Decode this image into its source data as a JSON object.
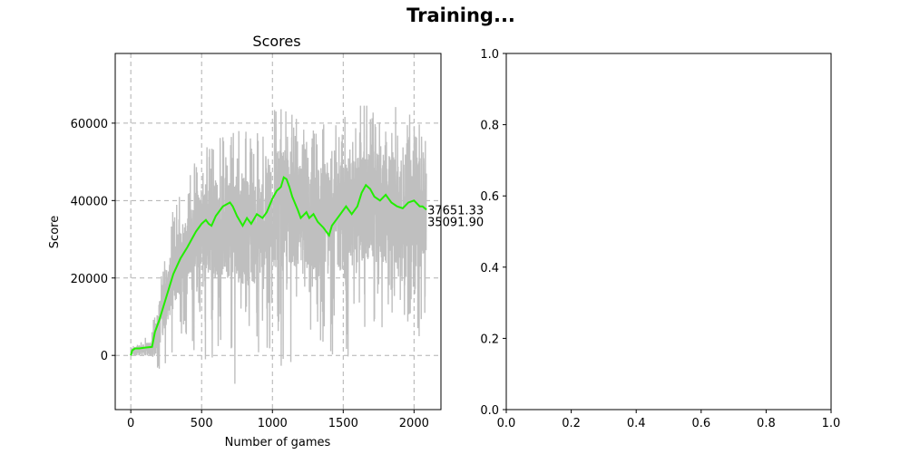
{
  "figure": {
    "suptitle": "Training..."
  },
  "chart_data": [
    {
      "type": "line",
      "title": "Scores",
      "xlabel": "Number of games",
      "ylabel": "Score",
      "xlim": [
        -110,
        2190
      ],
      "ylim": [
        -14000,
        78000
      ],
      "xticks": [
        0,
        500,
        1000,
        1500,
        2000
      ],
      "yticks": [
        0,
        20000,
        40000,
        60000
      ],
      "xtick_labels": [
        "0",
        "500",
        "1000",
        "1500",
        "2000"
      ],
      "ytick_labels": [
        "0",
        "20000",
        "40000",
        "60000"
      ],
      "grid": true,
      "grid_style": "dashed",
      "series": [
        {
          "role": "raw scores",
          "color": "#bfbfbf",
          "n_games": 2088,
          "envelope_x": [
            0,
            50,
            100,
            150,
            200,
            250,
            300,
            350,
            400,
            450,
            500,
            550,
            600,
            650,
            700,
            750,
            800,
            850,
            900,
            950,
            1000,
            1050,
            1100,
            1150,
            1200,
            1250,
            1300,
            1350,
            1400,
            1450,
            1500,
            1550,
            1600,
            1650,
            1700,
            1750,
            1800,
            1850,
            1900,
            1950,
            2000,
            2050,
            2088
          ],
          "envelope_high": [
            2500,
            3000,
            4500,
            7000,
            22000,
            30000,
            38000,
            45000,
            48000,
            50000,
            52000,
            55000,
            57000,
            58000,
            60000,
            60000,
            59000,
            58000,
            58000,
            60000,
            65000,
            67000,
            65000,
            62000,
            60000,
            60000,
            58000,
            60000,
            62000,
            63000,
            64000,
            62000,
            65000,
            67000,
            65000,
            65000,
            63000,
            65000,
            65000,
            66000,
            67000,
            65000,
            60000
          ],
          "envelope_low": [
            0,
            0,
            0,
            0,
            -5000,
            -8000,
            -3000,
            2000,
            5000,
            0,
            -3000,
            -6000,
            2000,
            0,
            -5000,
            -9000,
            -5000,
            -2000,
            -1000,
            -3000,
            0,
            -3000,
            -2000,
            -2000,
            -3000,
            -2000,
            -1000,
            -2000,
            -1000,
            -1000,
            -2000,
            0,
            -2000,
            -1000,
            2000,
            5000,
            8000,
            10000,
            10000,
            8000,
            10000,
            -2000,
            12000
          ],
          "typical_low": [
            0,
            0,
            0,
            0,
            2000,
            8000,
            12000,
            16000,
            20000,
            22000,
            22000,
            20000,
            20000,
            20000,
            20000,
            19000,
            18000,
            18000,
            20000,
            20000,
            22000,
            22000,
            24000,
            22000,
            21000,
            21000,
            19000,
            19000,
            20000,
            21000,
            22000,
            22000,
            23000,
            24000,
            24000,
            24000,
            23000,
            23000,
            22000,
            22000,
            22000,
            22000,
            24000
          ],
          "typical_high": [
            2000,
            2500,
            3000,
            4000,
            14000,
            22000,
            28000,
            34000,
            37000,
            40000,
            44000,
            46000,
            46000,
            47000,
            47000,
            46000,
            46000,
            46000,
            47000,
            48000,
            52000,
            53000,
            53000,
            50000,
            49000,
            49000,
            47000,
            47000,
            48000,
            50000,
            51000,
            51000,
            52000,
            53000,
            53000,
            52000,
            52000,
            52000,
            52000,
            52000,
            52000,
            52000,
            50000
          ]
        },
        {
          "role": "moving average",
          "color": "#22ee00",
          "x": [
            0,
            10,
            30,
            60,
            100,
            150,
            170,
            200,
            250,
            300,
            350,
            400,
            430,
            460,
            480,
            500,
            530,
            550,
            570,
            600,
            650,
            700,
            720,
            750,
            790,
            820,
            850,
            890,
            930,
            960,
            1000,
            1030,
            1060,
            1080,
            1100,
            1120,
            1140,
            1180,
            1200,
            1240,
            1260,
            1290,
            1320,
            1360,
            1400,
            1420,
            1440,
            1470,
            1490,
            1520,
            1560,
            1600,
            1630,
            1660,
            1690,
            1720,
            1760,
            1800,
            1840,
            1880,
            1920,
            1960,
            2000,
            2040,
            2060,
            2088
          ],
          "y": [
            0,
            1300,
            1800,
            1800,
            2000,
            2200,
            6000,
            9000,
            15000,
            21000,
            25000,
            28000,
            30000,
            32000,
            33000,
            34000,
            35000,
            34000,
            33500,
            36000,
            38500,
            39500,
            38500,
            36000,
            33500,
            35500,
            34000,
            36500,
            35500,
            37000,
            40500,
            42500,
            43500,
            46000,
            45500,
            43500,
            41000,
            37500,
            35500,
            37000,
            35500,
            36500,
            34500,
            33000,
            31000,
            33500,
            34500,
            36000,
            37000,
            38500,
            36500,
            38500,
            42000,
            44000,
            43000,
            41000,
            40000,
            41500,
            39500,
            38500,
            38000,
            39500,
            40000,
            38500,
            38500,
            37651.33
          ]
        }
      ],
      "annotations": [
        "37651.33",
        "35091.90"
      ]
    },
    {
      "type": "line",
      "title": "",
      "xlim": [
        0,
        1
      ],
      "ylim": [
        0,
        1
      ],
      "xticks": [
        0,
        0.2,
        0.4,
        0.6,
        0.8,
        1.0
      ],
      "yticks": [
        0,
        0.2,
        0.4,
        0.6,
        0.8,
        1.0
      ],
      "xtick_labels": [
        "0.0",
        "0.2",
        "0.4",
        "0.6",
        "0.8",
        "1.0"
      ],
      "ytick_labels": [
        "0.0",
        "0.2",
        "0.4",
        "0.6",
        "0.8",
        "1.0"
      ],
      "series": []
    }
  ]
}
